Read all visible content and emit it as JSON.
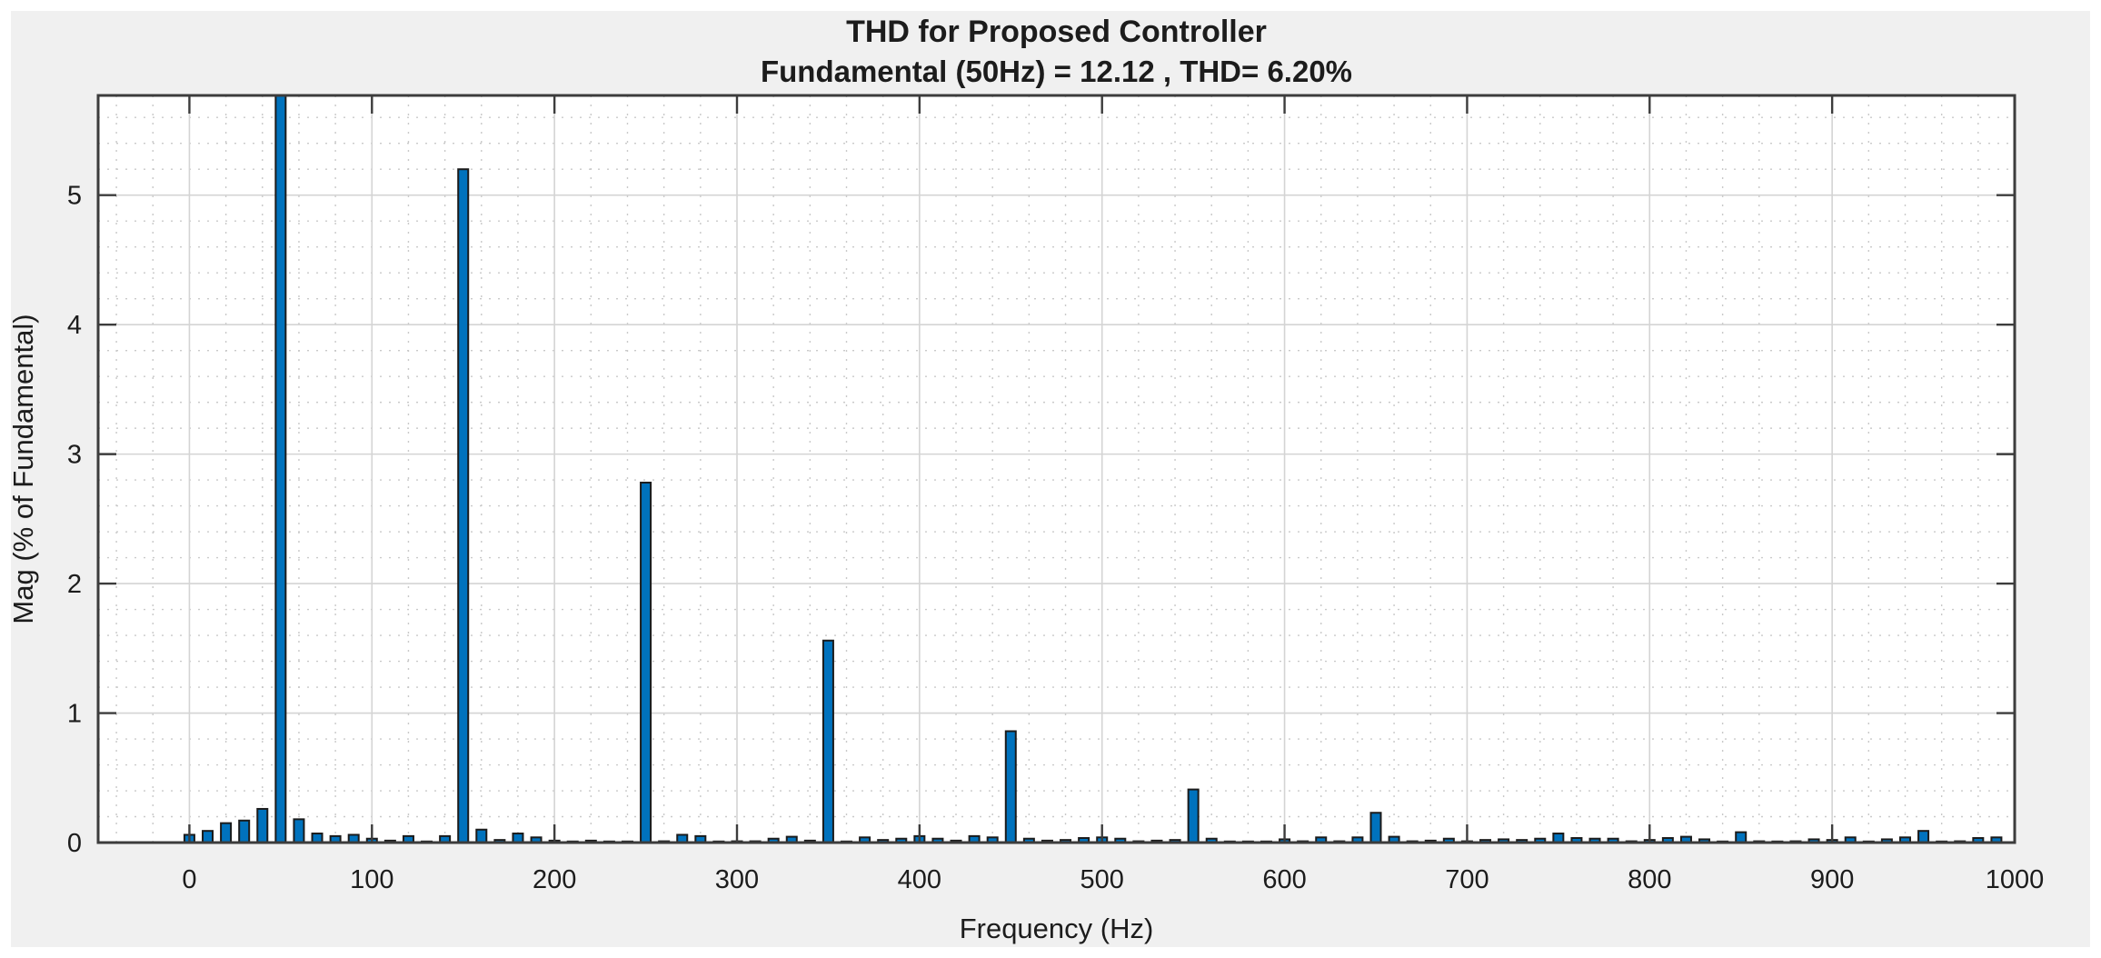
{
  "figure": {
    "title": "THD for Proposed Controller",
    "subtitle": "Fundamental (50Hz) = 12.12 , THD= 6.20%"
  },
  "chart_data": {
    "type": "bar",
    "title": "THD for Proposed Controller",
    "subtitle": "Fundamental (50Hz) = 12.12 , THD= 6.20%",
    "xlabel": "Frequency (Hz)",
    "ylabel": "Mag (% of Fundamental)",
    "xlim": [
      -50,
      1000
    ],
    "ylim": [
      0,
      5.77
    ],
    "fundamental_hz": 50,
    "fundamental_value": 12.12,
    "thd_percent": 6.2,
    "grid": true,
    "legend": "none",
    "xticks": [
      0,
      100,
      200,
      300,
      400,
      500,
      600,
      700,
      800,
      900,
      1000
    ],
    "yticks": [
      0,
      1,
      2,
      3,
      4,
      5
    ],
    "minor_grid": {
      "x_step_hz": 20,
      "y_step": 0.2
    },
    "bin_spacing_hz": 10,
    "x": [
      0,
      10,
      20,
      30,
      40,
      50,
      60,
      70,
      80,
      90,
      100,
      110,
      120,
      130,
      140,
      150,
      160,
      170,
      180,
      190,
      200,
      210,
      220,
      230,
      240,
      250,
      260,
      270,
      280,
      290,
      300,
      310,
      320,
      330,
      340,
      350,
      360,
      370,
      380,
      390,
      400,
      410,
      420,
      430,
      440,
      450,
      460,
      470,
      480,
      490,
      500,
      510,
      520,
      530,
      540,
      550,
      560,
      570,
      580,
      590,
      600,
      610,
      620,
      630,
      640,
      650,
      660,
      670,
      680,
      690,
      700,
      710,
      720,
      730,
      740,
      750,
      760,
      770,
      780,
      790,
      800,
      810,
      820,
      830,
      840,
      850,
      860,
      870,
      880,
      890,
      900,
      910,
      920,
      930,
      940,
      950,
      960,
      970,
      980,
      990
    ],
    "values": [
      0.06,
      0.09,
      0.15,
      0.17,
      0.26,
      12.12,
      0.18,
      0.07,
      0.05,
      0.06,
      0.03,
      0.015,
      0.05,
      0.005,
      0.05,
      5.2,
      0.1,
      0.02,
      0.07,
      0.04,
      0.015,
      0.005,
      0.015,
      0.005,
      0.005,
      2.78,
      0.01,
      0.06,
      0.05,
      0.005,
      0.01,
      0.01,
      0.03,
      0.045,
      0.015,
      1.56,
      0.005,
      0.04,
      0.02,
      0.03,
      0.05,
      0.03,
      0.015,
      0.05,
      0.04,
      0.86,
      0.03,
      0.015,
      0.02,
      0.035,
      0.04,
      0.03,
      0.01,
      0.015,
      0.02,
      0.41,
      0.03,
      0.005,
      0.005,
      0.005,
      0.025,
      0.01,
      0.04,
      0.01,
      0.04,
      0.23,
      0.045,
      0.01,
      0.015,
      0.03,
      0.01,
      0.02,
      0.025,
      0.02,
      0.03,
      0.07,
      0.035,
      0.03,
      0.03,
      0.01,
      0.02,
      0.035,
      0.045,
      0.025,
      0.005,
      0.08,
      0.01,
      0.005,
      0.01,
      0.025,
      0.02,
      0.04,
      0.008,
      0.025,
      0.04,
      0.09,
      0.005,
      0.01,
      0.035,
      0.04
    ],
    "colors": {
      "bar_fill": "#0072BD",
      "bar_edge": "#1b1b1b",
      "figure_bg": "#f0f0f0",
      "plot_bg": "#ffffff",
      "grid_major": "#d4d4d4",
      "grid_minor": "#c9c9c9",
      "axis": "#3c3c3c",
      "text": "#1c1c1c"
    }
  }
}
